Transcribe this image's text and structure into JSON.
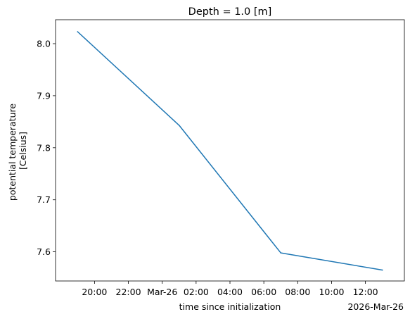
{
  "chart_data": {
    "type": "line",
    "title": "Depth = 1.0 [m]",
    "xlabel": "time since initialization",
    "ylabel_lines": [
      "potential temperature",
      "[Celsius]"
    ],
    "x_offset_label": "2026-Mar-26",
    "x": [
      "2026-03-25 19:00",
      "2026-03-26 01:00",
      "2026-03-26 07:00",
      "2026-03-26 13:00"
    ],
    "series": [
      {
        "values": [
          8.023,
          7.843,
          7.598,
          7.565
        ],
        "color": "#1f77b4"
      }
    ],
    "xlim": [
      "2026-03-25 17:42",
      "2026-03-26 14:18"
    ],
    "ylim": [
      7.544,
      8.046
    ],
    "x_ticks": [
      {
        "at": "2026-03-25 20:00",
        "label": "20:00"
      },
      {
        "at": "2026-03-25 22:00",
        "label": "22:00"
      },
      {
        "at": "2026-03-26 00:00",
        "label": "Mar-26"
      },
      {
        "at": "2026-03-26 02:00",
        "label": "02:00"
      },
      {
        "at": "2026-03-26 04:00",
        "label": "04:00"
      },
      {
        "at": "2026-03-26 06:00",
        "label": "06:00"
      },
      {
        "at": "2026-03-26 08:00",
        "label": "08:00"
      },
      {
        "at": "2026-03-26 10:00",
        "label": "10:00"
      },
      {
        "at": "2026-03-26 12:00",
        "label": "12:00"
      }
    ],
    "y_ticks": [
      {
        "value": 7.6,
        "label": "7.6"
      },
      {
        "value": 7.7,
        "label": "7.7"
      },
      {
        "value": 7.8,
        "label": "7.8"
      },
      {
        "value": 7.9,
        "label": "7.9"
      },
      {
        "value": 8.0,
        "label": "8.0"
      }
    ],
    "grid": false,
    "legend": "none"
  }
}
